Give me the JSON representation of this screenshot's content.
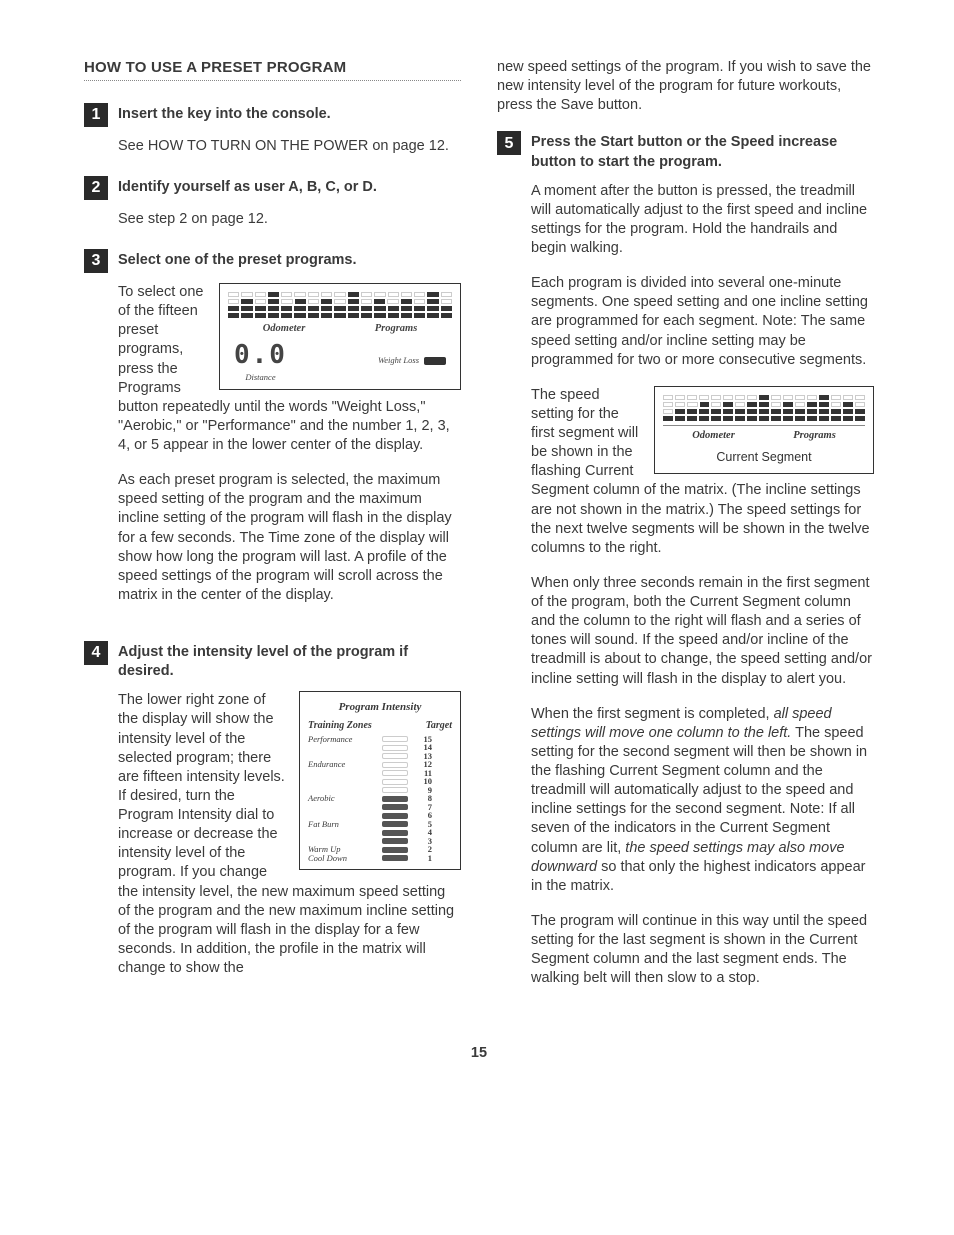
{
  "page_number": "15",
  "section_title": "HOW TO USE A PRESET PROGRAM",
  "steps": {
    "s1": {
      "num": "1",
      "head": "Insert the key into the console.",
      "p1": "See HOW TO TURN ON THE POWER on page 12."
    },
    "s2": {
      "num": "2",
      "head": "Identify yourself as user A, B, C, or D.",
      "p1": "See step 2 on page 12."
    },
    "s3": {
      "num": "3",
      "head": "Select one of the preset programs.",
      "p1": "To select one of the fifteen preset programs, press the Programs button repeatedly",
      "p1b": "until the words \"Weight Loss,\" \"Aerobic,\" or \"Performance\" and the number 1, 2, 3, 4, or 5 appear in the lower center of the display.",
      "p2": "As each preset program is selected, the maximum speed setting of the program and the maximum incline setting of the program will flash in the display for a few seconds. The Time zone of the display will show how long the program will last. A profile of the speed settings of the program will scroll across the matrix in the center of the display."
    },
    "s4": {
      "num": "4",
      "head": "Adjust the intensity level of the program if desired.",
      "p1": "The lower right zone of the display will show the intensity level of the selected program; there are fifteen intensity levels. If desired, turn the Program Intensity dial to increase or decrease the intensity level of the program. If you change the intensity level, the new",
      "p1b": "maximum speed setting of the program and the new maximum incline setting of the program will flash in the display for a few seconds. In addition, the profile in the matrix will change to show the"
    },
    "s5": {
      "num": "5",
      "head": "Press the Start button or the Speed increase button to start the program.",
      "pre": "new speed settings of the program. If you wish to save the new intensity level of the program for future workouts, press the Save button.",
      "p1": "A moment after the button is pressed, the treadmill will automatically adjust to the first speed and incline settings for the program. Hold the handrails and begin walking.",
      "p2": "Each program is divided into several one-minute segments. One speed setting and one incline setting are programmed for each segment. Note: The same speed setting and/or incline setting may be programmed for two or more consecutive segments.",
      "p3a": "The speed setting for the first segment will be shown in the flashing Current",
      "p3b": "Segment column of the matrix. (The incline settings are not shown in the matrix.) The speed settings for the next twelve segments will be shown in the twelve columns to the right.",
      "p4": "When only three seconds remain in the first segment of the program, both the Current Segment column and the column to the right will flash and a series of tones will sound. If the speed and/or incline of the treadmill is about to change, the speed setting and/or incline setting will flash in the display to alert you.",
      "p5a": "When the first segment is completed, ",
      "p5i": "all speed settings will move one column to the left.",
      "p5b": " The speed setting for the second segment will then be shown in the flashing Current Segment column and the treadmill will automatically adjust to the speed and incline settings for the second segment. Note: If all seven of the indicators in the Current Segment column are lit, ",
      "p5i2": "the speed settings may also move downward",
      "p5c": " so that only the highest indicators appear in the matrix.",
      "p6": "The program will continue in this way until the speed setting for the last segment is shown in the Current Segment column and the last segment ends. The walking belt will then slow to a stop."
    }
  },
  "display1": {
    "label_left": "Odometer",
    "label_right": "Programs",
    "seg": "0.0",
    "distance_label": "Distance",
    "program_name": "Weight Loss",
    "matrix_rows": [
      [
        0,
        0,
        0,
        1,
        0,
        0,
        0,
        0,
        0,
        1,
        0,
        0,
        0,
        0,
        0,
        1,
        0
      ],
      [
        0,
        1,
        0,
        1,
        0,
        1,
        0,
        1,
        0,
        1,
        0,
        1,
        0,
        1,
        0,
        1,
        0
      ],
      [
        1,
        1,
        1,
        1,
        1,
        1,
        1,
        1,
        1,
        1,
        1,
        1,
        1,
        1,
        1,
        1,
        1
      ],
      [
        1,
        1,
        1,
        1,
        1,
        1,
        1,
        1,
        1,
        1,
        1,
        1,
        1,
        1,
        1,
        1,
        1
      ]
    ]
  },
  "intensity": {
    "title": "Program Intensity",
    "col1": "Training Zones",
    "col2": "Target",
    "rows": [
      {
        "zone": "Performance",
        "bar": 0,
        "target": "15"
      },
      {
        "zone": "",
        "bar": 0,
        "target": "14"
      },
      {
        "zone": "",
        "bar": 0,
        "target": "13"
      },
      {
        "zone": "Endurance",
        "bar": 0,
        "target": "12"
      },
      {
        "zone": "",
        "bar": 0,
        "target": "11"
      },
      {
        "zone": "",
        "bar": 0,
        "target": "10"
      },
      {
        "zone": "",
        "bar": 0,
        "target": "9"
      },
      {
        "zone": "Aerobic",
        "bar": 1,
        "target": "8"
      },
      {
        "zone": "",
        "bar": 1,
        "target": "7"
      },
      {
        "zone": "",
        "bar": 1,
        "target": "6"
      },
      {
        "zone": "Fat Burn",
        "bar": 1,
        "target": "5"
      },
      {
        "zone": "",
        "bar": 1,
        "target": "4"
      },
      {
        "zone": "",
        "bar": 1,
        "target": "3"
      },
      {
        "zone": "Warm Up",
        "bar": 1,
        "target": "2"
      },
      {
        "zone": "Cool Down",
        "bar": 1,
        "target": "1"
      }
    ]
  },
  "display2": {
    "label_left": "Odometer",
    "label_right": "Programs",
    "cs_label": "Current Segment",
    "matrix_rows": [
      [
        0,
        0,
        0,
        0,
        0,
        0,
        0,
        0,
        1,
        0,
        0,
        0,
        0,
        1,
        0,
        0,
        0
      ],
      [
        0,
        0,
        0,
        1,
        0,
        1,
        0,
        1,
        1,
        0,
        1,
        0,
        1,
        1,
        0,
        1,
        0
      ],
      [
        0,
        1,
        1,
        1,
        1,
        1,
        1,
        1,
        1,
        1,
        1,
        1,
        1,
        1,
        1,
        1,
        1
      ],
      [
        1,
        1,
        1,
        1,
        1,
        1,
        1,
        1,
        1,
        1,
        1,
        1,
        1,
        1,
        1,
        1,
        1
      ]
    ]
  }
}
